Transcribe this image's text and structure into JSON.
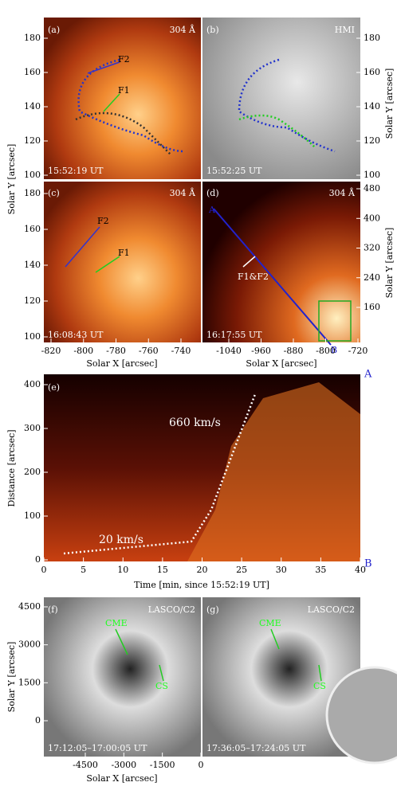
{
  "panels": [
    {
      "label": "(a)",
      "tag": "304 Å",
      "time": "15:52:19 UT",
      "annotations": [
        "F2",
        "F1"
      ]
    },
    {
      "label": "(b)",
      "tag": "HMI",
      "time": "15:52:25 UT",
      "annotations": []
    },
    {
      "label": "(c)",
      "tag": "304 Å",
      "time": "16:08:43 UT",
      "annotations": [
        "F2",
        "F1"
      ]
    },
    {
      "label": "(d)",
      "tag": "304 Å",
      "time": "16:17:55 UT",
      "annotations": [
        "A",
        "B",
        "F1&F2"
      ]
    },
    {
      "label": "(e)",
      "annotations": [
        "660 km/s",
        "20 km/s",
        "A",
        "B"
      ]
    },
    {
      "label": "(f)",
      "tag": "LASCO/C2",
      "time": "17:12:05–17:00:05 UT",
      "annotations": [
        "CME",
        "CS"
      ]
    },
    {
      "label": "(g)",
      "tag": "LASCO/C2",
      "time": "17:36:05–17:24:05 UT",
      "annotations": [
        "CME",
        "CS"
      ]
    }
  ],
  "axes": {
    "top_y": {
      "label": "Solar Y [arcsec]",
      "ticks": [
        180,
        160,
        140,
        120,
        100
      ]
    },
    "top_right_y": {
      "label": "Solar Y [arcsec]",
      "ticks": [
        180,
        160,
        140,
        120,
        100
      ]
    },
    "mid_y": {
      "ticks": [
        180,
        160,
        140,
        120,
        100
      ]
    },
    "mid_left_x": {
      "label": "Solar X [arcsec]",
      "ticks": [
        -820,
        -800,
        -780,
        -760,
        -740
      ]
    },
    "mid_right_x": {
      "label": "Solar X [arcsec]",
      "ticks": [
        -1040,
        -960,
        -880,
        -800,
        -720
      ]
    },
    "mid_right_y": {
      "label": "Solar Y [arcsec]",
      "ticks": [
        480,
        400,
        320,
        240,
        160
      ]
    },
    "e_y": {
      "label": "Distance [arcsec]",
      "ticks": [
        0,
        100,
        200,
        300,
        400
      ]
    },
    "e_x": {
      "label": "Time [min, since 15:52:19 UT]",
      "ticks": [
        0,
        5,
        10,
        15,
        20,
        25,
        30,
        35,
        40
      ]
    },
    "bottom_y": {
      "label": "Solar Y [arcsec]",
      "ticks": [
        4500,
        3000,
        1500,
        0
      ]
    },
    "bottom_x": {
      "label": "Solar X [arcsec]",
      "ticks": [
        -4500,
        -3000,
        -1500,
        0
      ]
    }
  }
}
